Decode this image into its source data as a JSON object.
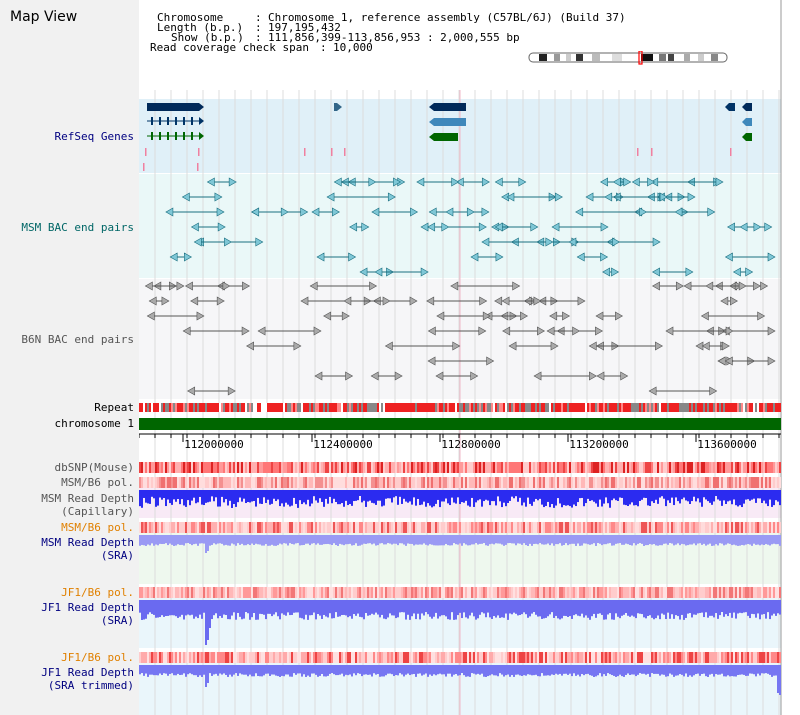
{
  "app": {
    "title": "Map View"
  },
  "header": {
    "chromosome_label": "Chromosome",
    "chromosome_value": "Chromosome 1, reference assembly (C57BL/6J) (Build 37)",
    "length_label": "Length (b.p.)",
    "length_value": "197,195,432",
    "show_label": "Show (b.p.)",
    "show_value": "111,856,399-113,856,953 : 2,000,555 bp",
    "coverage_label": "Read coverage check span",
    "coverage_value": "10,000"
  },
  "tracks": {
    "refseq": "RefSeq Genes",
    "msm_bac": "MSM BAC end pairs",
    "b6n_bac": "B6N BAC end pairs",
    "repeat": "Repeat",
    "chromosome": "chromosome 1",
    "dbsnp": "dbSNP(Mouse)",
    "msm_b6_pol_1": "MSM/B6 pol.",
    "msm_depth_cap_1": "MSM Read Depth",
    "msm_depth_cap_2": "(Capillary)",
    "msm_b6_pol_2": "MSM/B6 pol.",
    "msm_depth_sra_1": "MSM Read Depth",
    "msm_depth_sra_2": "(SRA)",
    "jf1_b6_pol_1": "JF1/B6 pol.",
    "jf1_depth_sra_1": "JF1 Read Depth",
    "jf1_depth_sra_2": "(SRA)",
    "jf1_b6_pol_2": "JF1/B6 pol.",
    "jf1_depth_trim_1": "JF1 Read Depth",
    "jf1_depth_trim_2": "(SRA trimmed)"
  },
  "ruler": {
    "ticks": [
      "112000000",
      "112400000",
      "112800000",
      "113200000",
      "113600000"
    ]
  },
  "colors": {
    "refseq_label": "#000080",
    "msm_label": "#006666",
    "b6n_label": "#555555",
    "pol_label_orange": "#e08000",
    "depth_label_blue": "#000080",
    "refseq_bg": "#e0f0f8",
    "msm_bg": "#eaf8f8",
    "b6n_bg": "#f6f6f8",
    "chromosome_bar": "#006600",
    "depth_blue": "#3333ee",
    "sra_bg": "#eef8ee"
  }
}
